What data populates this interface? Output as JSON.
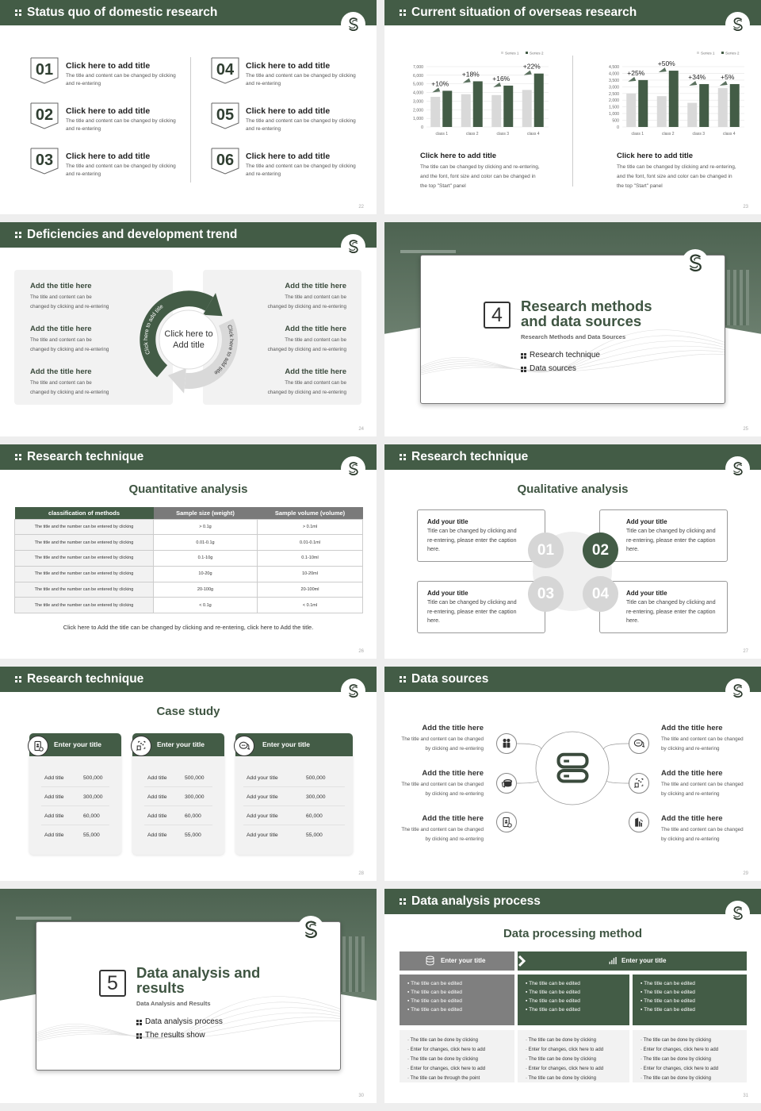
{
  "colors": {
    "brand": "#435c46",
    "gray": "#7f7f7f",
    "light": "#f2f2f2",
    "series1": "#d9d9d9",
    "series2": "#435c46"
  },
  "slides": {
    "s22": {
      "title": "Status quo of domestic research",
      "page": "22",
      "items": [
        {
          "num": "01",
          "title": "Click here to add title",
          "text": "The title and content can be changed by clicking and re-entering"
        },
        {
          "num": "02",
          "title": "Click here to add title",
          "text": "The title and content can be changed by clicking and re-entering"
        },
        {
          "num": "03",
          "title": "Click here to add title",
          "text": "The title and content can be changed by clicking and re-entering"
        },
        {
          "num": "04",
          "title": "Click here to add title",
          "text": "The title and content can be changed by clicking and re-entering"
        },
        {
          "num": "05",
          "title": "Click here to add title",
          "text": "The title and content can be changed by clicking and re-entering"
        },
        {
          "num": "06",
          "title": "Click here to add title",
          "text": "The title and content can be changed by clicking and re-entering"
        }
      ]
    },
    "s23": {
      "title": "Current situation of overseas research",
      "page": "23",
      "captions": [
        {
          "title": "Click here to add title",
          "text": "The title can be changed by clicking and re-entering, and the font, font size and color can be changed in the top \"Start\" panel"
        },
        {
          "title": "Click here to add title",
          "text": "The title can be changed by clicking and re-entering, and the font, font size and color can be changed in the top \"Start\" panel"
        }
      ]
    },
    "s24": {
      "title": "Deficiencies and development trend",
      "page": "24",
      "center": "Click here to Add title",
      "arc_left": "Click here to add title",
      "arc_right": "Click here to add title",
      "left": [
        {
          "title": "Add the title here",
          "text": "The title and content can be changed by clicking and re-entering"
        },
        {
          "title": "Add the title here",
          "text": "The title and content can be changed by clicking and re-entering"
        },
        {
          "title": "Add the title here",
          "text": "The title and content can be changed by clicking and re-entering"
        }
      ],
      "right": [
        {
          "title": "Add the title here",
          "text": "The title and content can be changed by clicking and re-entering"
        },
        {
          "title": "Add the title here",
          "text": "The title and content can be changed by clicking and re-entering"
        },
        {
          "title": "Add the title here",
          "text": "The title and content can be changed by clicking and re-entering"
        }
      ]
    },
    "s25": {
      "page": "25",
      "number": "4",
      "title": "Research methods and data sources",
      "subtitle": "Research Methods and Data Sources",
      "bullets": [
        "Research technique",
        "Data sources"
      ]
    },
    "s26": {
      "title": "Research technique",
      "page": "26",
      "subtitle": "Quantitative analysis",
      "table": {
        "headers": [
          "classification of methods",
          "Sample size (weight)",
          "Sample volume (volume)"
        ],
        "rows": [
          [
            "The title and the number can be entered by clicking",
            "> 0.1g",
            "> 0.1ml"
          ],
          [
            "The title and the number can be entered by clicking",
            "0.01-0.1g",
            "0.01-0.1ml"
          ],
          [
            "The title and the number can be entered by clicking",
            "0.1-10g",
            "0.1-10ml"
          ],
          [
            "The title and the number can be entered by clicking",
            "10-20g",
            "10-20ml"
          ],
          [
            "The title and the number can be entered by clicking",
            "20-100g",
            "20-100ml"
          ],
          [
            "The title and the number can be entered by clicking",
            "< 0.1g",
            "< 0.1ml"
          ]
        ]
      },
      "footer": "Click here to Add the title can be changed by clicking and re-entering, click here to Add the title."
    },
    "s27": {
      "title": "Research technique",
      "page": "27",
      "subtitle": "Qualitative analysis",
      "boxes": [
        {
          "num": "01",
          "title": "Add your title",
          "text": "Title can be changed by clicking and re-entering, please enter the caption here."
        },
        {
          "num": "02",
          "title": "Add your title",
          "text": "Title can be changed by clicking and re-entering, please enter the caption here."
        },
        {
          "num": "03",
          "title": "Add your title",
          "text": "Title can be changed by clicking and re-entering, please enter the caption here."
        },
        {
          "num": "04",
          "title": "Add your title",
          "text": "Title can be changed by clicking and re-entering, please enter the caption here."
        }
      ],
      "highlighted": "02"
    },
    "s28": {
      "title": "Research technique",
      "page": "28",
      "subtitle": "Case study",
      "cards": [
        {
          "title": "Enter your title",
          "icon": "phone-user-icon",
          "rows": [
            [
              "Add title",
              "500,000"
            ],
            [
              "Add title",
              "300,000"
            ],
            [
              "Add title",
              "60,000"
            ],
            [
              "Add title",
              "55,000"
            ]
          ]
        },
        {
          "title": "Enter your title",
          "icon": "qr-scan-icon",
          "rows": [
            [
              "Add title",
              "500,000"
            ],
            [
              "Add title",
              "300,000"
            ],
            [
              "Add title",
              "60,000"
            ],
            [
              "Add title",
              "55,000"
            ]
          ]
        },
        {
          "title": "Enter your title",
          "icon": "chat-icon",
          "rows": [
            [
              "Add your title",
              "500,000"
            ],
            [
              "Add your title",
              "300,000"
            ],
            [
              "Add your title",
              "60,000"
            ],
            [
              "Add your title",
              "55,000"
            ]
          ]
        }
      ]
    },
    "s29": {
      "title": "Data sources",
      "page": "29",
      "center_icon": "server-icon",
      "left": [
        {
          "title": "Add the title here",
          "text": "The title and content can be changed by clicking and re-entering",
          "icon": "people-icon"
        },
        {
          "title": "Add the title here",
          "text": "The title and content can be changed by clicking and re-entering",
          "icon": "database-icon"
        },
        {
          "title": "Add the title here",
          "text": "The title and content can be changed by clicking and re-entering",
          "icon": "phone-user-icon"
        }
      ],
      "right": [
        {
          "title": "Add the title here",
          "text": "The title and content can be changed by clicking and re-entering",
          "icon": "chat-icon"
        },
        {
          "title": "Add the title here",
          "text": "The title and content can be changed by clicking and re-entering",
          "icon": "qr-scan-icon"
        },
        {
          "title": "Add the title here",
          "text": "The title and content can be changed by clicking and re-entering",
          "icon": "building-chart-icon"
        }
      ]
    },
    "s30": {
      "page": "30",
      "number": "5",
      "title": "Data analysis and results",
      "subtitle": "Data Analysis and Results",
      "bullets": [
        "Data analysis process",
        "The results show"
      ]
    },
    "s31": {
      "title": "Data analysis process",
      "page": "31",
      "subtitle": "Data processing method",
      "header_left": "Enter your title",
      "header_right": "Enter your title",
      "mid": [
        [
          "The title can be edited",
          "The title can be edited",
          "The title can be edited",
          "The title can be edited"
        ],
        [
          "The title can be edited",
          "The title can be edited",
          "The title can be edited",
          "The title can be edited"
        ],
        [
          "The title can be edited",
          "The title can be edited",
          "The title can be edited",
          "The title can be edited"
        ]
      ],
      "bottom": [
        [
          "The title can be done by clicking",
          "Enter for changes, click here to add",
          "The title can be done by clicking",
          "Enter for changes, click here to add",
          "The title can be through the point"
        ],
        [
          "The title can be done by clicking",
          "Enter for changes, click here to add",
          "The title can be done by clicking",
          "Enter for changes, click here to add",
          "The title can be done by clicking"
        ],
        [
          "The title can be done by clicking",
          "Enter for changes, click here to add",
          "The title can be done by clicking",
          "Enter for changes, click here to add",
          "The title can be done by clicking"
        ]
      ]
    }
  },
  "chart_data": [
    {
      "type": "bar",
      "categories": [
        "class 1",
        "class 2",
        "class 3",
        "class 4"
      ],
      "series": [
        {
          "name": "Series 1",
          "values": [
            3500,
            3800,
            3700,
            4300
          ]
        },
        {
          "name": "Series 2",
          "values": [
            4200,
            5300,
            4800,
            6200
          ]
        }
      ],
      "annotations": [
        "+10%",
        "+18%",
        "+16%",
        "+22%"
      ],
      "ylim": [
        0,
        7000
      ],
      "yticks": [
        "0",
        "1,000",
        "2,000",
        "3,000",
        "4,000",
        "5,000",
        "6,000",
        "7,000"
      ],
      "grid": true,
      "legend": "top-right"
    },
    {
      "type": "bar",
      "categories": [
        "class 1",
        "class 2",
        "class 3",
        "class 4"
      ],
      "series": [
        {
          "name": "Series 1",
          "values": [
            2500,
            2300,
            1800,
            2900
          ]
        },
        {
          "name": "Series 2",
          "values": [
            3500,
            4200,
            3200,
            3200
          ]
        }
      ],
      "annotations": [
        "+25%",
        "+50%",
        "+34%",
        "+5%"
      ],
      "ylim": [
        0,
        4500
      ],
      "yticks": [
        "0",
        "500",
        "1,000",
        "1,500",
        "2,000",
        "2,500",
        "3,000",
        "3,500",
        "4,000",
        "4,500"
      ],
      "grid": true,
      "legend": "top-right"
    }
  ]
}
